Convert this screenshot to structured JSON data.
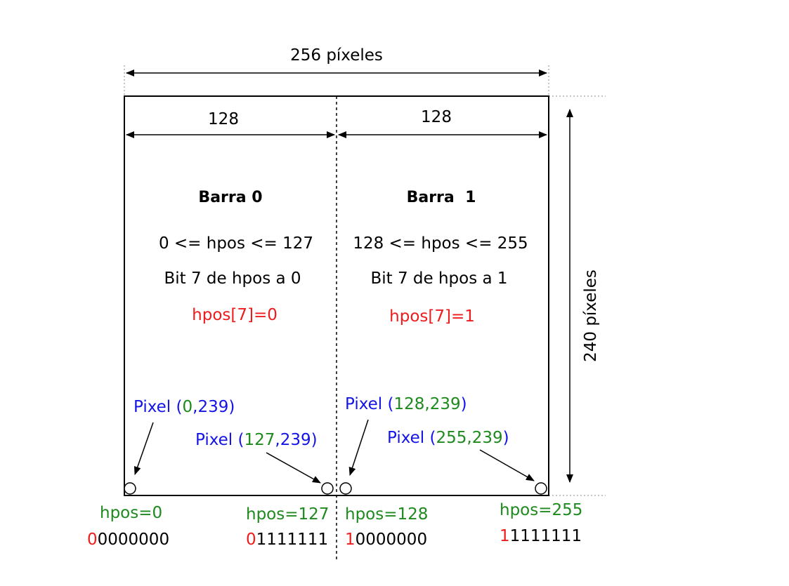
{
  "dimensions": {
    "total_width": "256 píxeles",
    "total_height": "240 píxeles",
    "left_half_width": "128",
    "right_half_width": "128"
  },
  "bars": [
    {
      "title": "Barra 0",
      "range": "0 <= hpos <= 127",
      "bit_text": "Bit 7 de hpos a 0",
      "hpos_bit": "hpos[7]=0"
    },
    {
      "title": "Barra  1",
      "range": "128 <= hpos <= 255",
      "bit_text": "Bit 7 de hpos a 1",
      "hpos_bit": "hpos[7]=1"
    }
  ],
  "pixels": [
    {
      "prefix": "Pixel (",
      "x": "0",
      "sep": ",",
      "y": "239",
      "suffix": ")",
      "hpos": "hpos=0",
      "msb": "0",
      "rest": "0000000"
    },
    {
      "prefix": "Pixel (",
      "x": "127",
      "sep": ",",
      "y": "239",
      "suffix": ")",
      "hpos": "hpos=127",
      "msb": "0",
      "rest": "1111111"
    },
    {
      "prefix": "Pixel (",
      "x": "128",
      "sep": ",",
      "y": "239",
      "suffix": ")",
      "hpos": "hpos=128",
      "msb": "1",
      "rest": "0000000"
    },
    {
      "prefix": "Pixel (",
      "x": "255",
      "sep": ",",
      "y": "239",
      "suffix": ")",
      "hpos": "hpos=255",
      "msb": "1",
      "rest": "1111111"
    }
  ],
  "colors": {
    "black": "#000000",
    "red": "#ee1c1c",
    "green": "#1e8a1e",
    "blue": "#1414e6",
    "grey": "#888888"
  }
}
